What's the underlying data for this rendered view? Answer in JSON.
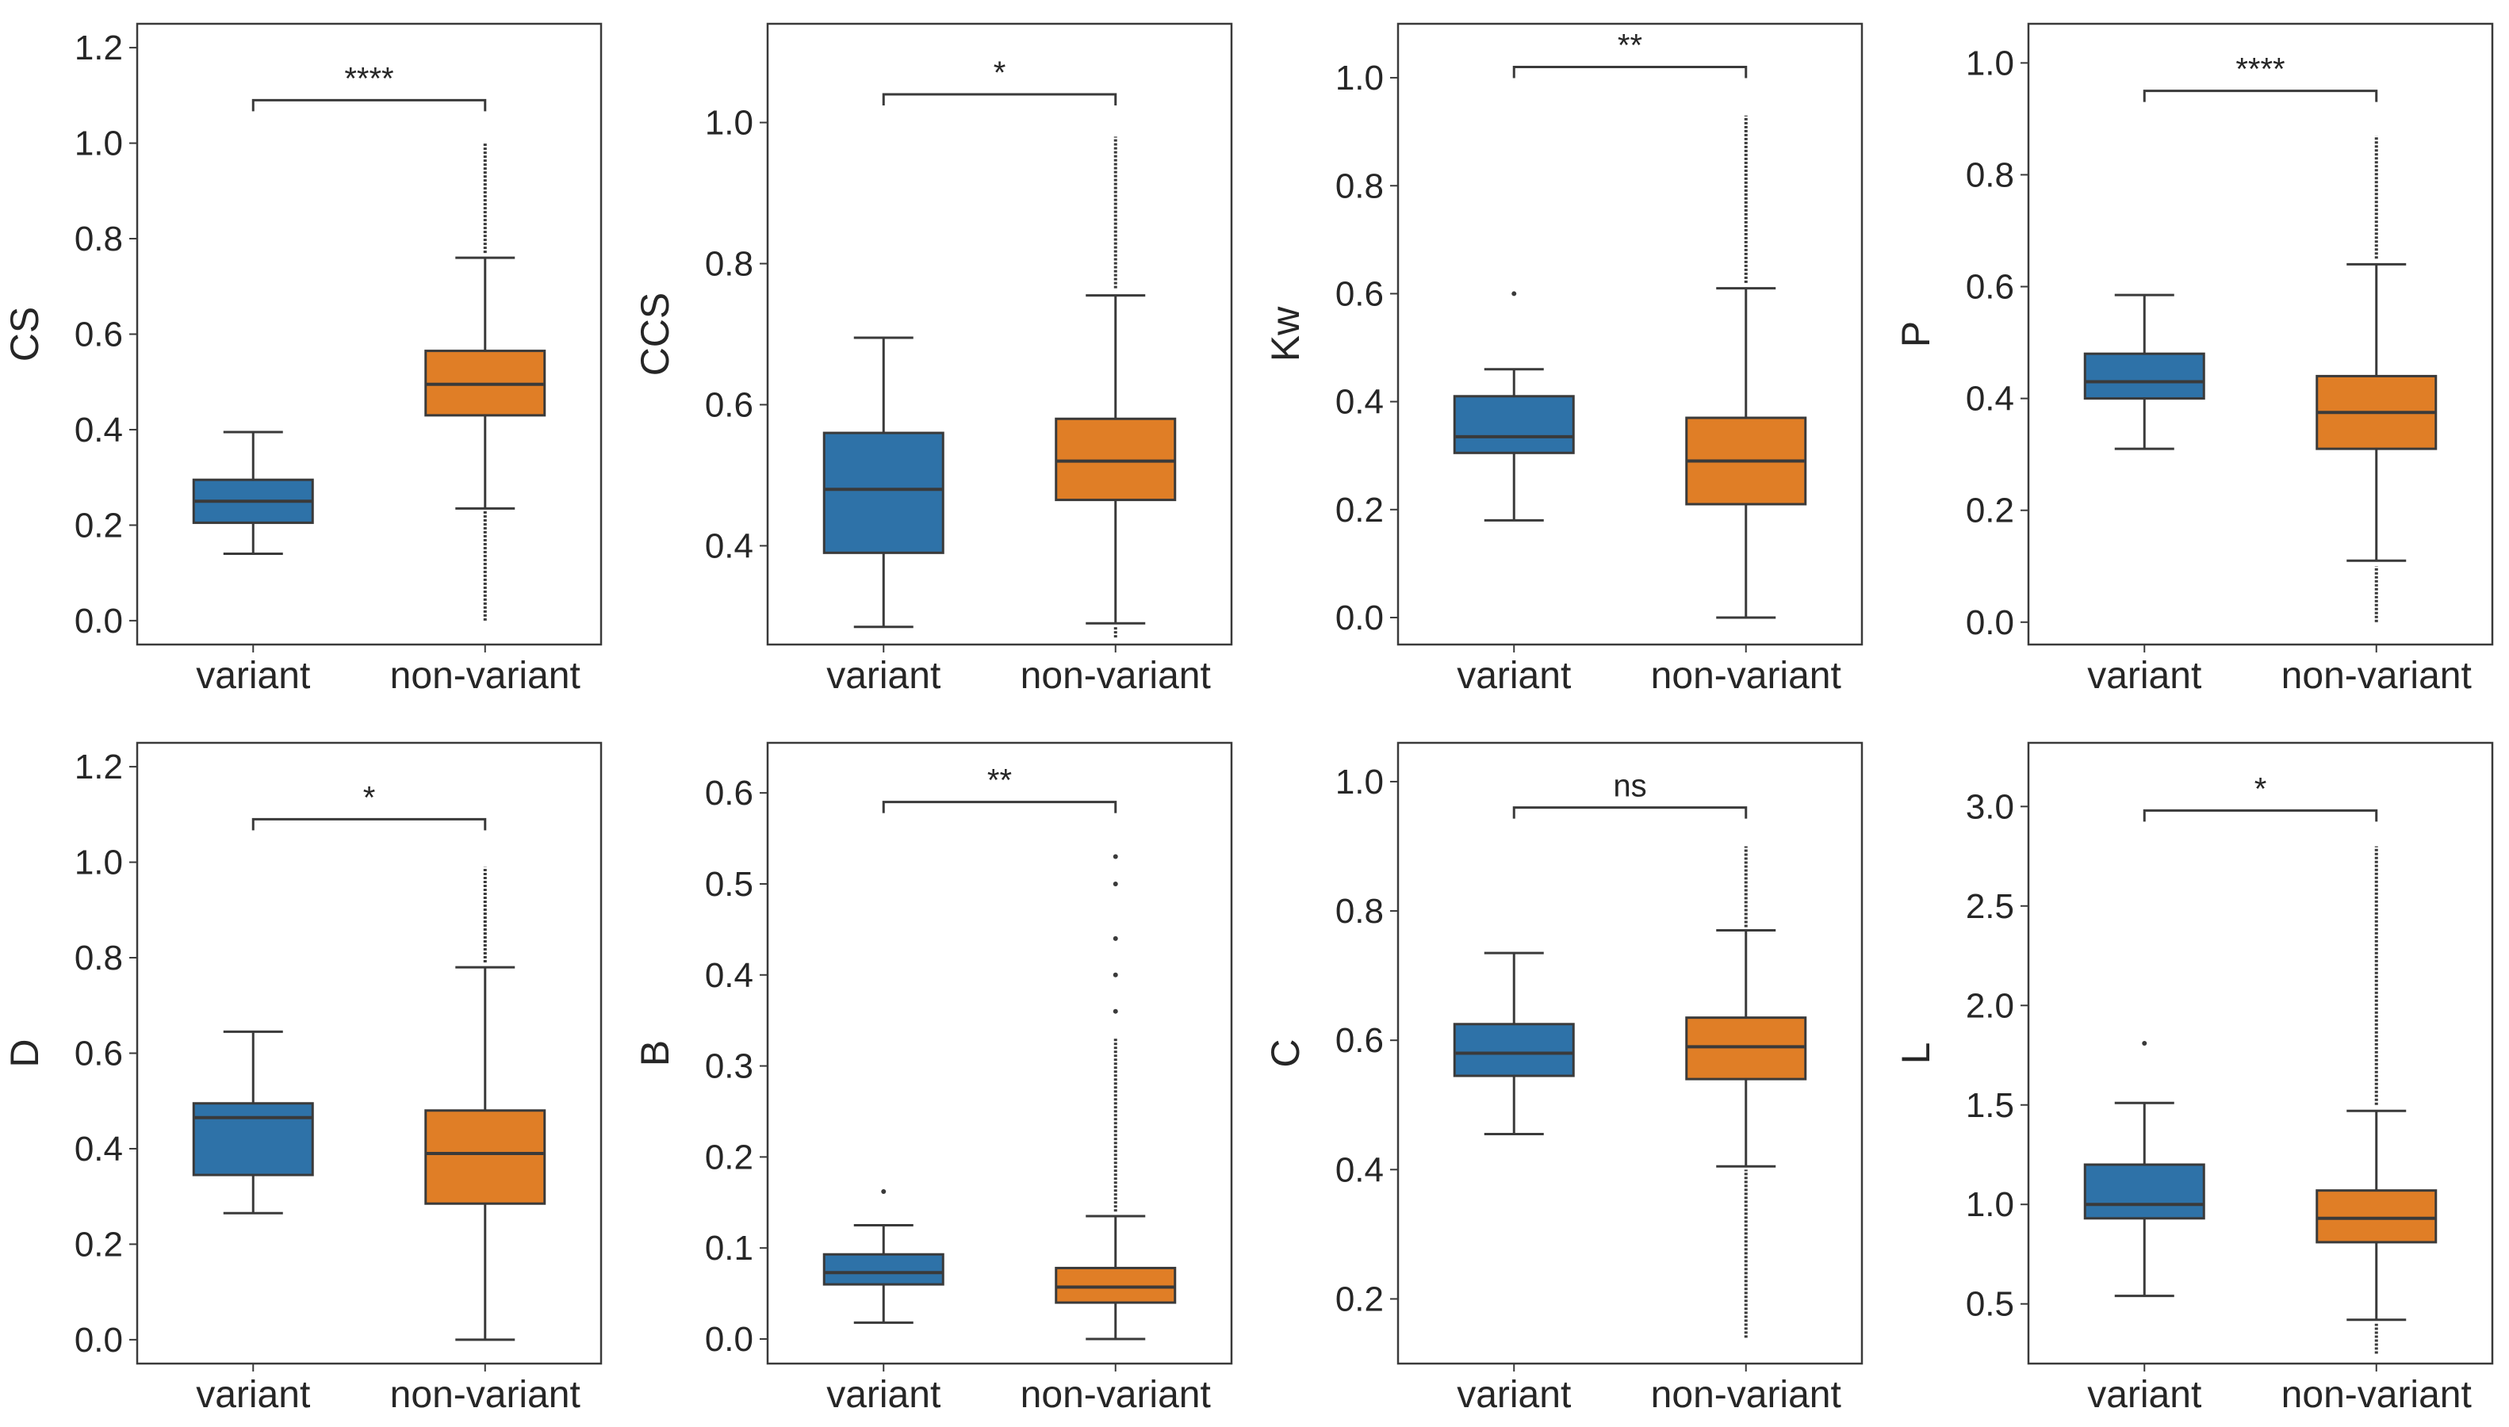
{
  "colors": {
    "variant": "#2e72a8",
    "non_variant": "#e07e26",
    "line": "#3a3a3a",
    "frame": "#3a3a3a"
  },
  "chart_data": [
    {
      "type": "box",
      "ylabel": "CS",
      "categories": [
        "variant",
        "non-variant"
      ],
      "ylim": [
        -0.05,
        1.25
      ],
      "yticks": [
        0.0,
        0.2,
        0.4,
        0.6,
        0.8,
        1.0,
        1.2
      ],
      "ytick_labels": [
        "0.0",
        "0.2",
        "0.4",
        "0.6",
        "0.8",
        "1.0",
        "1.2"
      ],
      "significance": "****",
      "sig_y": 1.09,
      "boxes": [
        {
          "group": "variant",
          "whisker_low": 0.14,
          "q1": 0.205,
          "median": 0.25,
          "q3": 0.295,
          "whisker_high": 0.395,
          "outliers": []
        },
        {
          "group": "non-variant",
          "whisker_low": 0.235,
          "q1": 0.43,
          "median": 0.495,
          "q3": 0.565,
          "whisker_high": 0.76,
          "outlier_range": [
            [
              0.0,
              0.23
            ],
            [
              0.77,
              1.0
            ]
          ]
        }
      ]
    },
    {
      "type": "box",
      "ylabel": "CCS",
      "categories": [
        "variant",
        "non-variant"
      ],
      "ylim": [
        0.26,
        1.14
      ],
      "yticks": [
        0.4,
        0.6,
        0.8,
        1.0
      ],
      "ytick_labels": [
        "0.4",
        "0.6",
        "0.8",
        "1.0"
      ],
      "significance": "*",
      "sig_y": 1.04,
      "boxes": [
        {
          "group": "variant",
          "whisker_low": 0.285,
          "q1": 0.39,
          "median": 0.48,
          "q3": 0.56,
          "whisker_high": 0.695,
          "outliers": []
        },
        {
          "group": "non-variant",
          "whisker_low": 0.29,
          "q1": 0.465,
          "median": 0.52,
          "q3": 0.58,
          "whisker_high": 0.755,
          "outlier_range": [
            [
              0.27,
              0.285
            ],
            [
              0.765,
              0.98
            ]
          ]
        }
      ]
    },
    {
      "type": "box",
      "ylabel": "Kw",
      "categories": [
        "variant",
        "non-variant"
      ],
      "ylim": [
        -0.05,
        1.1
      ],
      "yticks": [
        0.0,
        0.2,
        0.4,
        0.6,
        0.8,
        1.0
      ],
      "ytick_labels": [
        "0.0",
        "0.2",
        "0.4",
        "0.6",
        "0.8",
        "1.0"
      ],
      "significance": "**",
      "sig_y": 1.02,
      "boxes": [
        {
          "group": "variant",
          "whisker_low": 0.18,
          "q1": 0.305,
          "median": 0.335,
          "q3": 0.41,
          "whisker_high": 0.46,
          "outliers": [
            0.6
          ]
        },
        {
          "group": "non-variant",
          "whisker_low": 0.0,
          "q1": 0.21,
          "median": 0.29,
          "q3": 0.37,
          "whisker_high": 0.61,
          "outlier_range": [
            [
              0.62,
              0.93
            ]
          ]
        }
      ]
    },
    {
      "type": "box",
      "ylabel": "P",
      "categories": [
        "variant",
        "non-variant"
      ],
      "ylim": [
        -0.04,
        1.07
      ],
      "yticks": [
        0.0,
        0.2,
        0.4,
        0.6,
        0.8,
        1.0
      ],
      "ytick_labels": [
        "0.0",
        "0.2",
        "0.4",
        "0.6",
        "0.8",
        "1.0"
      ],
      "significance": "****",
      "sig_y": 0.95,
      "boxes": [
        {
          "group": "variant",
          "whisker_low": 0.31,
          "q1": 0.4,
          "median": 0.43,
          "q3": 0.48,
          "whisker_high": 0.585,
          "outliers": []
        },
        {
          "group": "non-variant",
          "whisker_low": 0.11,
          "q1": 0.31,
          "median": 0.375,
          "q3": 0.44,
          "whisker_high": 0.64,
          "outlier_range": [
            [
              0.0,
              0.1
            ],
            [
              0.65,
              0.87
            ]
          ]
        }
      ]
    },
    {
      "type": "box",
      "ylabel": "D",
      "categories": [
        "variant",
        "non-variant"
      ],
      "ylim": [
        -0.05,
        1.25
      ],
      "yticks": [
        0.0,
        0.2,
        0.4,
        0.6,
        0.8,
        1.0,
        1.2
      ],
      "ytick_labels": [
        "0.0",
        "0.2",
        "0.4",
        "0.6",
        "0.8",
        "1.0",
        "1.2"
      ],
      "significance": "*",
      "sig_y": 1.09,
      "boxes": [
        {
          "group": "variant",
          "whisker_low": 0.265,
          "q1": 0.345,
          "median": 0.465,
          "q3": 0.495,
          "whisker_high": 0.645,
          "outliers": []
        },
        {
          "group": "non-variant",
          "whisker_low": 0.0,
          "q1": 0.285,
          "median": 0.39,
          "q3": 0.48,
          "whisker_high": 0.78,
          "outlier_range": [
            [
              0.79,
              0.99
            ]
          ]
        }
      ]
    },
    {
      "type": "box",
      "ylabel": "B",
      "categories": [
        "variant",
        "non-variant"
      ],
      "ylim": [
        -0.027,
        0.655
      ],
      "yticks": [
        0.0,
        0.1,
        0.2,
        0.3,
        0.4,
        0.5,
        0.6
      ],
      "ytick_labels": [
        "0.0",
        "0.1",
        "0.2",
        "0.3",
        "0.4",
        "0.5",
        "0.6"
      ],
      "significance": "**",
      "sig_y": 0.59,
      "boxes": [
        {
          "group": "variant",
          "whisker_low": 0.018,
          "q1": 0.06,
          "median": 0.073,
          "q3": 0.093,
          "whisker_high": 0.125,
          "outliers": [
            0.162
          ]
        },
        {
          "group": "non-variant",
          "whisker_low": 0.0,
          "q1": 0.04,
          "median": 0.057,
          "q3": 0.078,
          "whisker_high": 0.135,
          "outlier_range": [
            [
              0.14,
              0.33
            ]
          ],
          "outliers": [
            0.36,
            0.4,
            0.44,
            0.5,
            0.53
          ]
        }
      ]
    },
    {
      "type": "box",
      "ylabel": "C",
      "categories": [
        "variant",
        "non-variant"
      ],
      "ylim": [
        0.1,
        1.06
      ],
      "yticks": [
        0.2,
        0.4,
        0.6,
        0.8,
        1.0
      ],
      "ytick_labels": [
        "0.2",
        "0.4",
        "0.6",
        "0.8",
        "1.0"
      ],
      "significance": "ns",
      "sig_y": 0.96,
      "boxes": [
        {
          "group": "variant",
          "whisker_low": 0.455,
          "q1": 0.545,
          "median": 0.58,
          "q3": 0.625,
          "whisker_high": 0.735,
          "outliers": []
        },
        {
          "group": "non-variant",
          "whisker_low": 0.405,
          "q1": 0.54,
          "median": 0.59,
          "q3": 0.635,
          "whisker_high": 0.77,
          "outlier_range": [
            [
              0.14,
              0.4
            ],
            [
              0.775,
              0.9
            ]
          ]
        }
      ]
    },
    {
      "type": "box",
      "ylabel": "L",
      "categories": [
        "variant",
        "non-variant"
      ],
      "ylim": [
        0.2,
        3.32
      ],
      "yticks": [
        0.5,
        1.0,
        1.5,
        2.0,
        2.5,
        3.0
      ],
      "ytick_labels": [
        "0.5",
        "1.0",
        "1.5",
        "2.0",
        "2.5",
        "3.0"
      ],
      "significance": "*",
      "sig_y": 2.98,
      "boxes": [
        {
          "group": "variant",
          "whisker_low": 0.54,
          "q1": 0.93,
          "median": 1.0,
          "q3": 1.2,
          "whisker_high": 1.51,
          "outliers": [
            1.81
          ]
        },
        {
          "group": "non-variant",
          "whisker_low": 0.42,
          "q1": 0.81,
          "median": 0.93,
          "q3": 1.07,
          "whisker_high": 1.47,
          "outlier_range": [
            [
              0.25,
              0.4
            ],
            [
              1.5,
              2.8
            ]
          ]
        }
      ]
    }
  ]
}
